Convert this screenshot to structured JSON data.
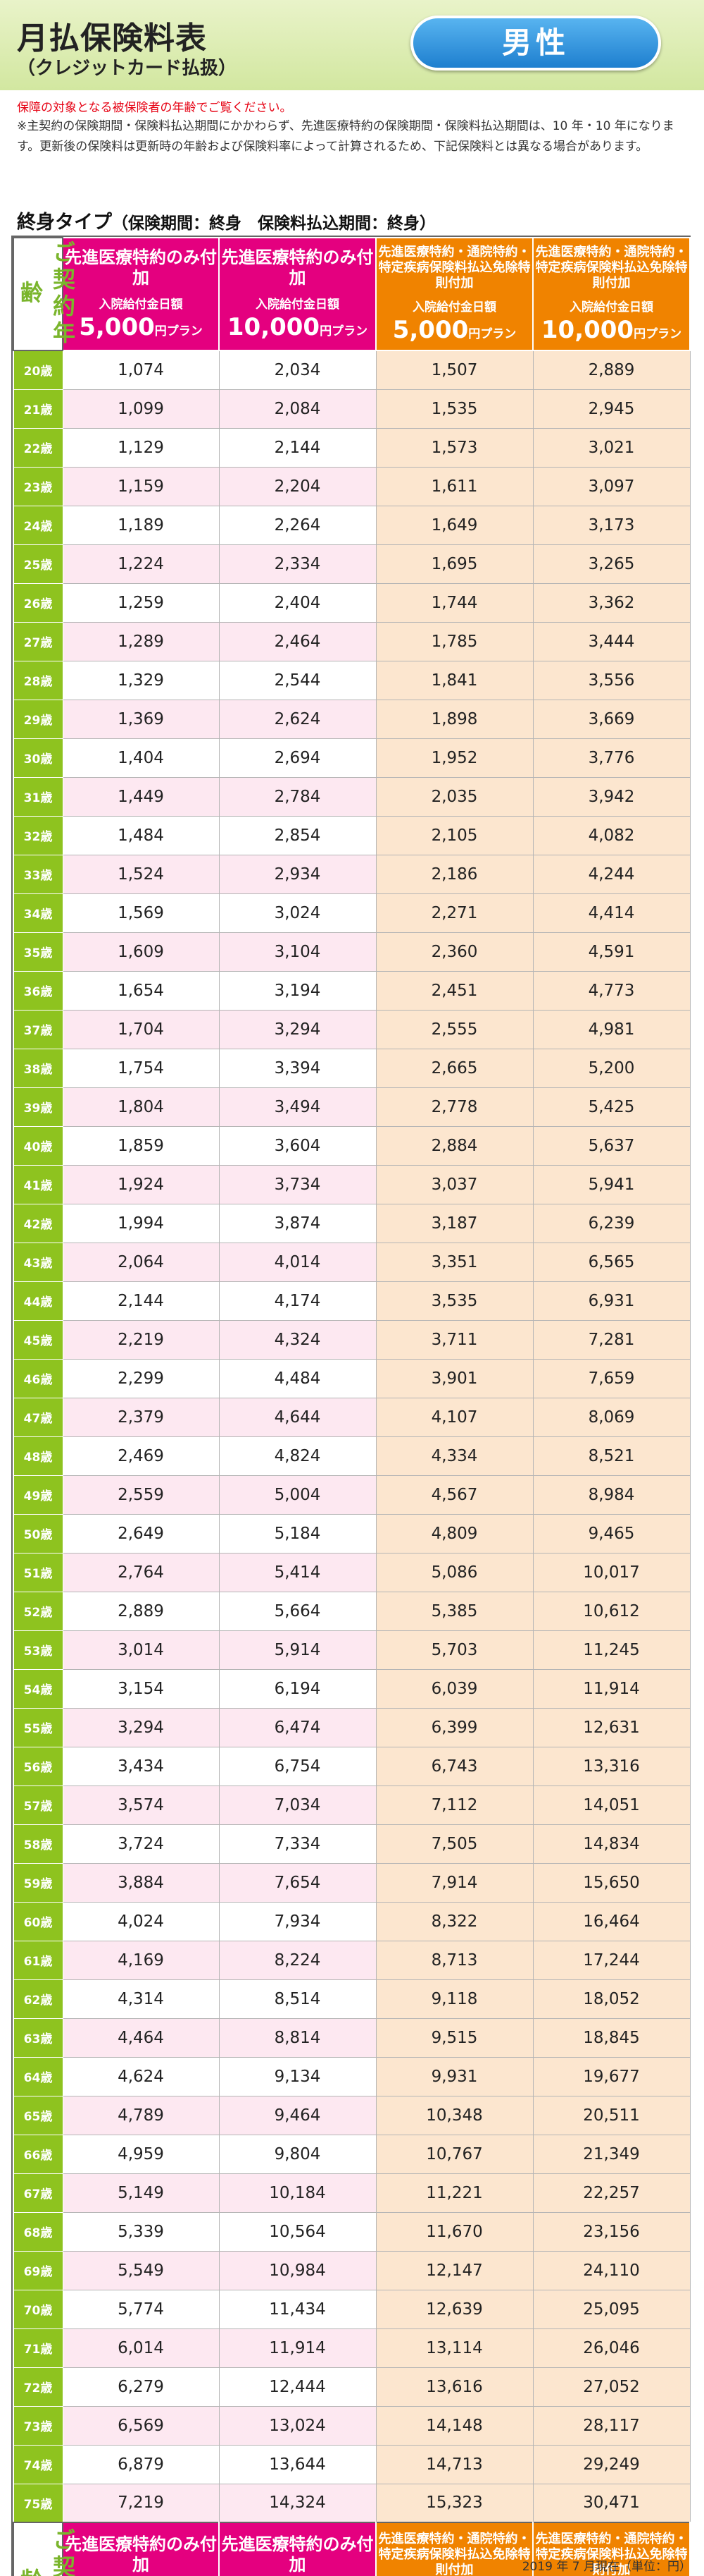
{
  "header": {
    "title": "月払保険料表",
    "subtitle": "（クレジットカード払扱）",
    "gender": "男性"
  },
  "notes": {
    "red": "保障の対象となる被保険者の年齢でご覧ください。",
    "main": "※主契約の保険期間・保険料払込期間にかかわらず、先進医療特約の保険期間・保険料払込期間は、10 年・10 年になります。更新後の保険料は更新時の年齢および保険料率によって計算されるため、下記保険料とは異なる場合があります。"
  },
  "section": {
    "title": "終身タイプ",
    "subtitle": "（保険期間：終身　保険料払込期間：終身）"
  },
  "table": {
    "age_header": "ご契約年齢",
    "columns": [
      {
        "name": "先進医療特約のみ付加",
        "sub": "入院給付金日額",
        "amount": "5,000",
        "unit": "円プラン"
      },
      {
        "name": "先進医療特約のみ付加",
        "sub": "入院給付金日額",
        "amount": "10,000",
        "unit": "円プラン"
      },
      {
        "name": "先進医療特約・通院特約・特定疾病保険料払込免除特則付加",
        "sub": "入院給付金日額",
        "amount": "5,000",
        "unit": "円プラン"
      },
      {
        "name": "先進医療特約・通院特約・特定疾病保険料払込免除特則付加",
        "sub": "入院給付金日額",
        "amount": "10,000",
        "unit": "円プラン"
      }
    ],
    "rows": [
      {
        "age": "20歳",
        "v": [
          "1,074",
          "2,034",
          "1,507",
          "2,889"
        ]
      },
      {
        "age": "21歳",
        "v": [
          "1,099",
          "2,084",
          "1,535",
          "2,945"
        ]
      },
      {
        "age": "22歳",
        "v": [
          "1,129",
          "2,144",
          "1,573",
          "3,021"
        ]
      },
      {
        "age": "23歳",
        "v": [
          "1,159",
          "2,204",
          "1,611",
          "3,097"
        ]
      },
      {
        "age": "24歳",
        "v": [
          "1,189",
          "2,264",
          "1,649",
          "3,173"
        ]
      },
      {
        "age": "25歳",
        "v": [
          "1,224",
          "2,334",
          "1,695",
          "3,265"
        ]
      },
      {
        "age": "26歳",
        "v": [
          "1,259",
          "2,404",
          "1,744",
          "3,362"
        ]
      },
      {
        "age": "27歳",
        "v": [
          "1,289",
          "2,464",
          "1,785",
          "3,444"
        ]
      },
      {
        "age": "28歳",
        "v": [
          "1,329",
          "2,544",
          "1,841",
          "3,556"
        ]
      },
      {
        "age": "29歳",
        "v": [
          "1,369",
          "2,624",
          "1,898",
          "3,669"
        ]
      },
      {
        "age": "30歳",
        "v": [
          "1,404",
          "2,694",
          "1,952",
          "3,776"
        ]
      },
      {
        "age": "31歳",
        "v": [
          "1,449",
          "2,784",
          "2,035",
          "3,942"
        ]
      },
      {
        "age": "32歳",
        "v": [
          "1,484",
          "2,854",
          "2,105",
          "4,082"
        ]
      },
      {
        "age": "33歳",
        "v": [
          "1,524",
          "2,934",
          "2,186",
          "4,244"
        ]
      },
      {
        "age": "34歳",
        "v": [
          "1,569",
          "3,024",
          "2,271",
          "4,414"
        ]
      },
      {
        "age": "35歳",
        "v": [
          "1,609",
          "3,104",
          "2,360",
          "4,591"
        ]
      },
      {
        "age": "36歳",
        "v": [
          "1,654",
          "3,194",
          "2,451",
          "4,773"
        ]
      },
      {
        "age": "37歳",
        "v": [
          "1,704",
          "3,294",
          "2,555",
          "4,981"
        ]
      },
      {
        "age": "38歳",
        "v": [
          "1,754",
          "3,394",
          "2,665",
          "5,200"
        ]
      },
      {
        "age": "39歳",
        "v": [
          "1,804",
          "3,494",
          "2,778",
          "5,425"
        ]
      },
      {
        "age": "40歳",
        "v": [
          "1,859",
          "3,604",
          "2,884",
          "5,637"
        ]
      },
      {
        "age": "41歳",
        "v": [
          "1,924",
          "3,734",
          "3,037",
          "5,941"
        ]
      },
      {
        "age": "42歳",
        "v": [
          "1,994",
          "3,874",
          "3,187",
          "6,239"
        ]
      },
      {
        "age": "43歳",
        "v": [
          "2,064",
          "4,014",
          "3,351",
          "6,565"
        ]
      },
      {
        "age": "44歳",
        "v": [
          "2,144",
          "4,174",
          "3,535",
          "6,931"
        ]
      },
      {
        "age": "45歳",
        "v": [
          "2,219",
          "4,324",
          "3,711",
          "7,281"
        ]
      },
      {
        "age": "46歳",
        "v": [
          "2,299",
          "4,484",
          "3,901",
          "7,659"
        ]
      },
      {
        "age": "47歳",
        "v": [
          "2,379",
          "4,644",
          "4,107",
          "8,069"
        ]
      },
      {
        "age": "48歳",
        "v": [
          "2,469",
          "4,824",
          "4,334",
          "8,521"
        ]
      },
      {
        "age": "49歳",
        "v": [
          "2,559",
          "5,004",
          "4,567",
          "8,984"
        ]
      },
      {
        "age": "50歳",
        "v": [
          "2,649",
          "5,184",
          "4,809",
          "9,465"
        ]
      },
      {
        "age": "51歳",
        "v": [
          "2,764",
          "5,414",
          "5,086",
          "10,017"
        ]
      },
      {
        "age": "52歳",
        "v": [
          "2,889",
          "5,664",
          "5,385",
          "10,612"
        ]
      },
      {
        "age": "53歳",
        "v": [
          "3,014",
          "5,914",
          "5,703",
          "11,245"
        ]
      },
      {
        "age": "54歳",
        "v": [
          "3,154",
          "6,194",
          "6,039",
          "11,914"
        ]
      },
      {
        "age": "55歳",
        "v": [
          "3,294",
          "6,474",
          "6,399",
          "12,631"
        ]
      },
      {
        "age": "56歳",
        "v": [
          "3,434",
          "6,754",
          "6,743",
          "13,316"
        ]
      },
      {
        "age": "57歳",
        "v": [
          "3,574",
          "7,034",
          "7,112",
          "14,051"
        ]
      },
      {
        "age": "58歳",
        "v": [
          "3,724",
          "7,334",
          "7,505",
          "14,834"
        ]
      },
      {
        "age": "59歳",
        "v": [
          "3,884",
          "7,654",
          "7,914",
          "15,650"
        ]
      },
      {
        "age": "60歳",
        "v": [
          "4,024",
          "7,934",
          "8,322",
          "16,464"
        ]
      },
      {
        "age": "61歳",
        "v": [
          "4,169",
          "8,224",
          "8,713",
          "17,244"
        ]
      },
      {
        "age": "62歳",
        "v": [
          "4,314",
          "8,514",
          "9,118",
          "18,052"
        ]
      },
      {
        "age": "63歳",
        "v": [
          "4,464",
          "8,814",
          "9,515",
          "18,845"
        ]
      },
      {
        "age": "64歳",
        "v": [
          "4,624",
          "9,134",
          "9,931",
          "19,677"
        ]
      },
      {
        "age": "65歳",
        "v": [
          "4,789",
          "9,464",
          "10,348",
          "20,511"
        ]
      },
      {
        "age": "66歳",
        "v": [
          "4,959",
          "9,804",
          "10,767",
          "21,349"
        ]
      },
      {
        "age": "67歳",
        "v": [
          "5,149",
          "10,184",
          "11,221",
          "22,257"
        ]
      },
      {
        "age": "68歳",
        "v": [
          "5,339",
          "10,564",
          "11,670",
          "23,156"
        ]
      },
      {
        "age": "69歳",
        "v": [
          "5,549",
          "10,984",
          "12,147",
          "24,110"
        ]
      },
      {
        "age": "70歳",
        "v": [
          "5,774",
          "11,434",
          "12,639",
          "25,095"
        ]
      },
      {
        "age": "71歳",
        "v": [
          "6,014",
          "11,914",
          "13,114",
          "26,046"
        ]
      },
      {
        "age": "72歳",
        "v": [
          "6,279",
          "12,444",
          "13,616",
          "27,052"
        ]
      },
      {
        "age": "73歳",
        "v": [
          "6,569",
          "13,024",
          "14,148",
          "28,117"
        ]
      },
      {
        "age": "74歳",
        "v": [
          "6,879",
          "13,644",
          "14,713",
          "29,249"
        ]
      },
      {
        "age": "75歳",
        "v": [
          "7,219",
          "14,324",
          "15,323",
          "30,471"
        ]
      }
    ]
  },
  "footer": {
    "date_note": "2019 年 7 月現在（単位：円）"
  },
  "colors": {
    "pink": "#e4007f",
    "orange": "#f08300",
    "green": "#8ec31f",
    "blue": "#1e7fcf"
  }
}
